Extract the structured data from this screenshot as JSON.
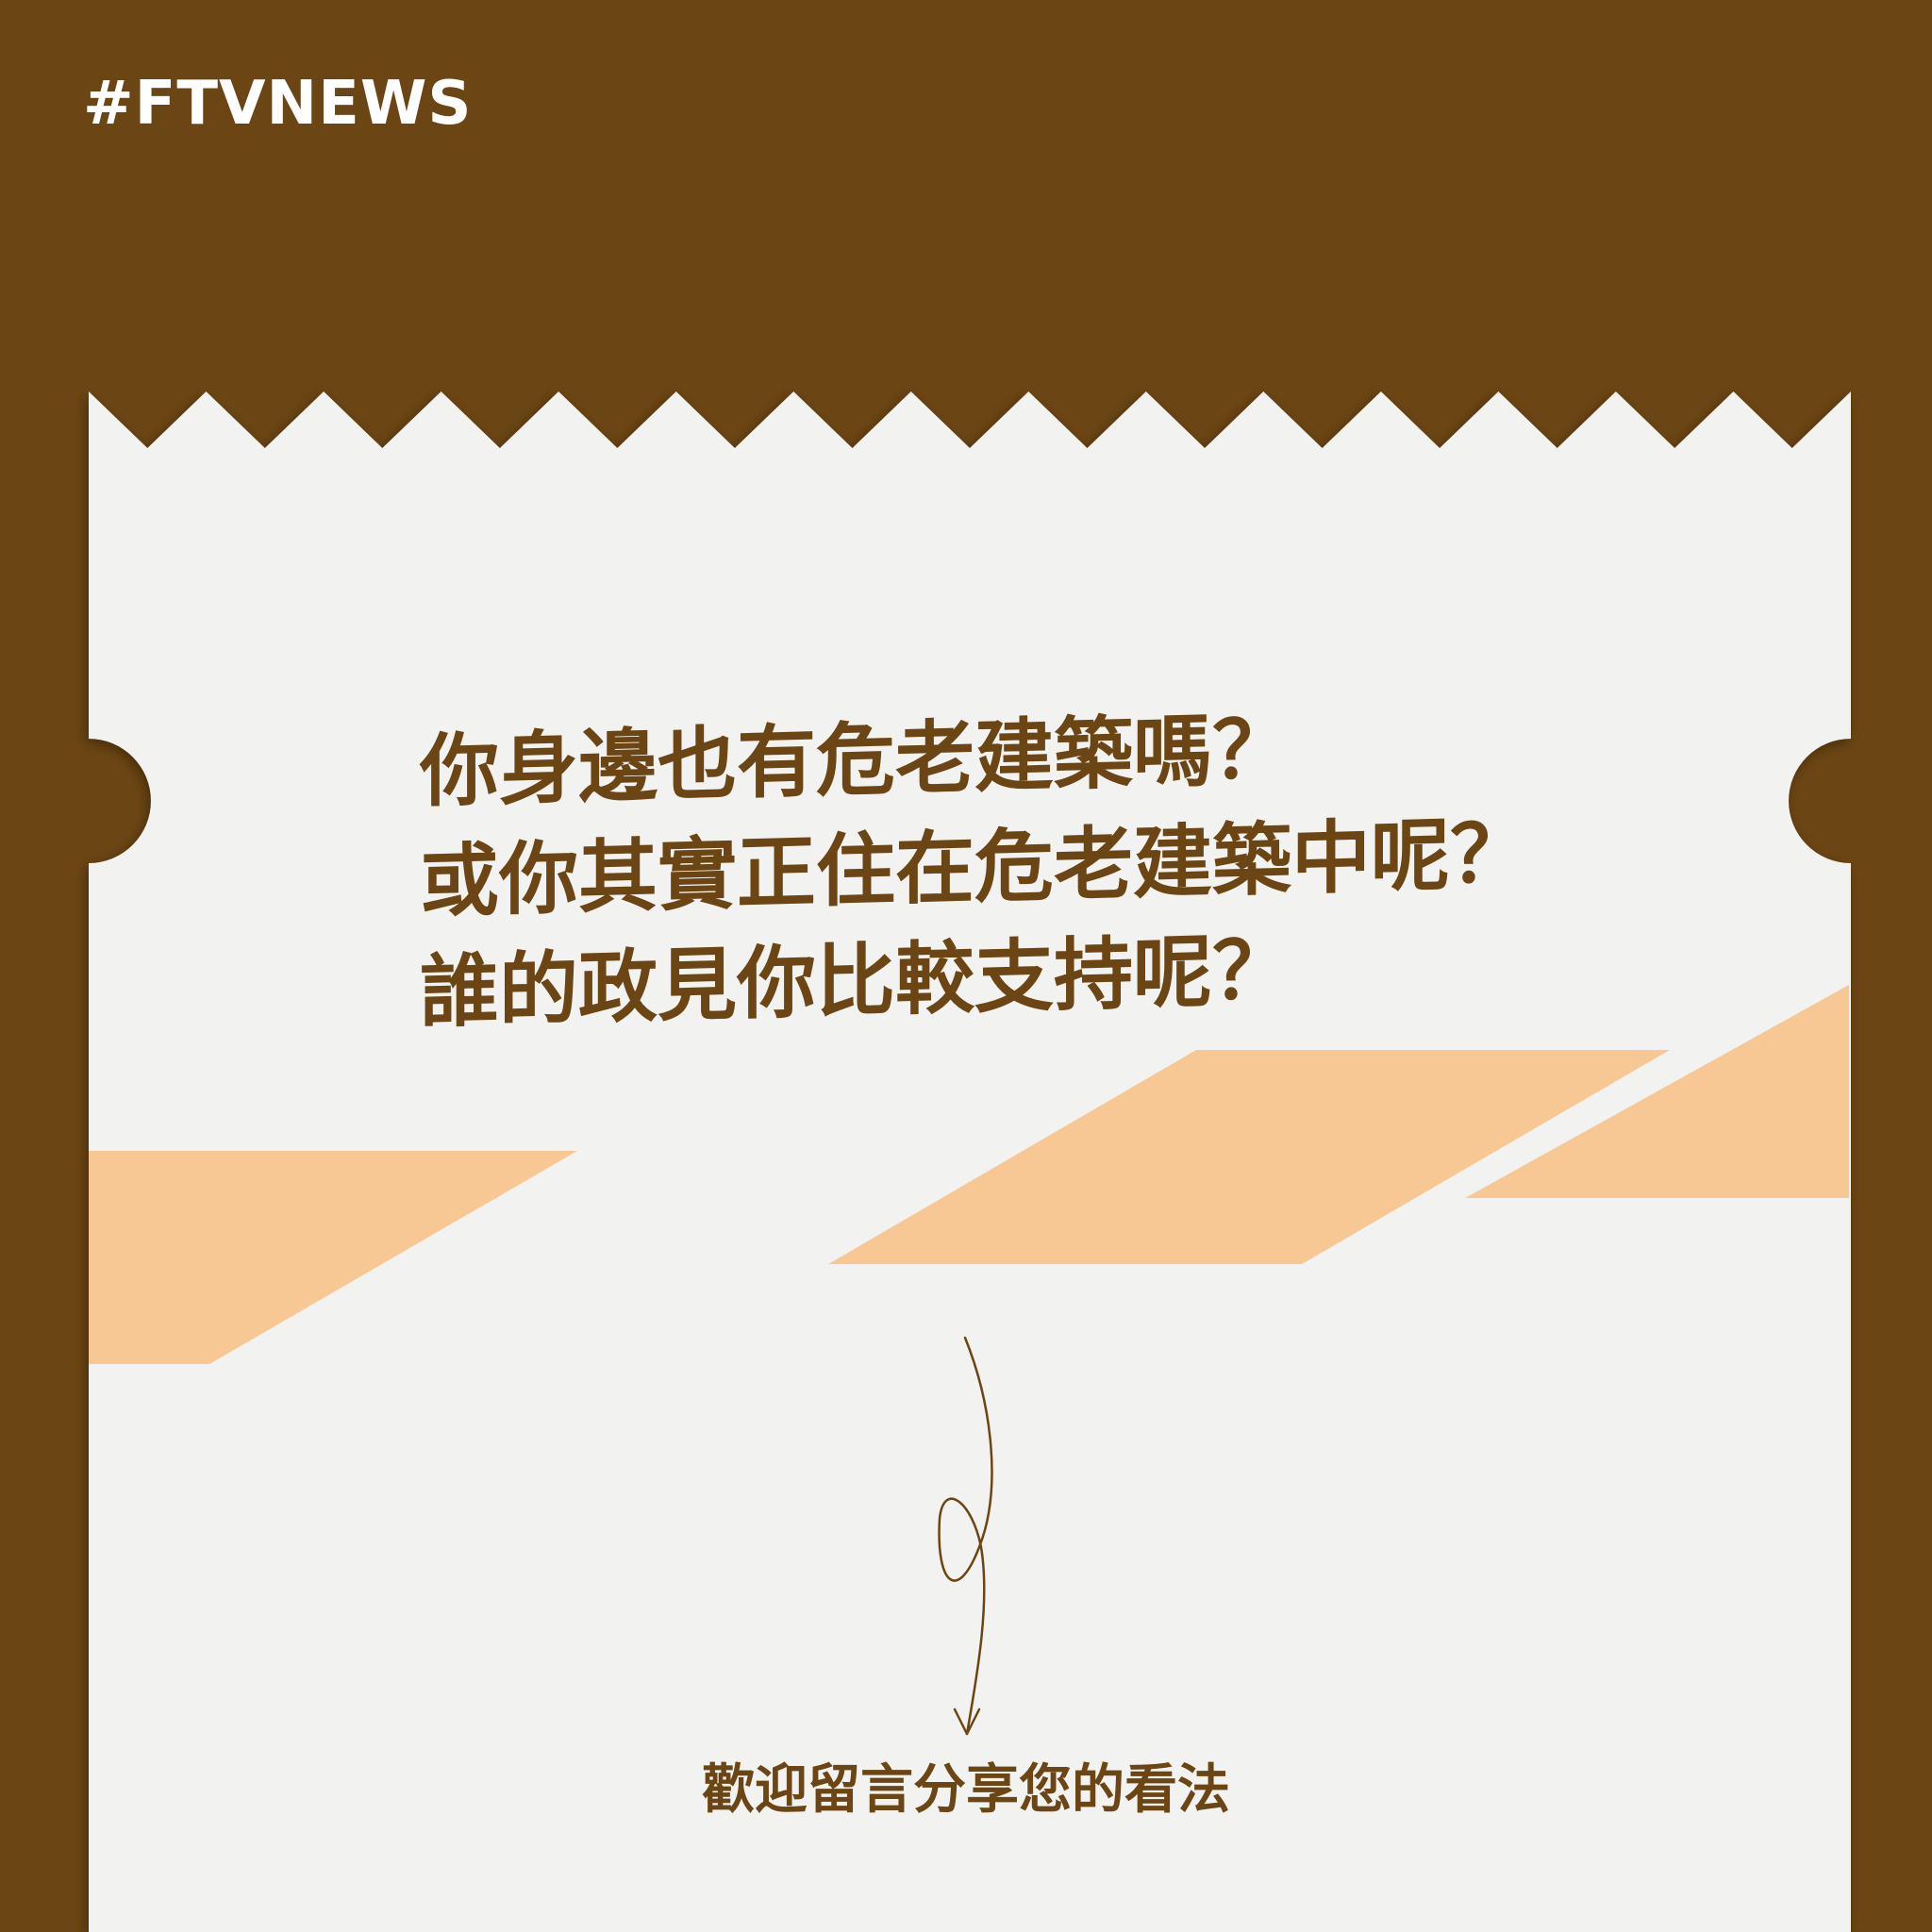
{
  "brand": {
    "hashtag": "#FTVNEWS"
  },
  "question": {
    "lines": [
      "你身邊也有危老建築嗎？",
      "或你其實正住在危老建築中呢？",
      "誰的政見你比較支持呢？"
    ]
  },
  "cta": {
    "text": "歡迎留言分享您的看法"
  },
  "colors": {
    "background": "#6b4513",
    "paper": "#f2f2f1",
    "accent": "#f7c894",
    "text": "#6b4513"
  },
  "icons": {
    "arrow": "hand-drawn-arrow-down-icon"
  }
}
